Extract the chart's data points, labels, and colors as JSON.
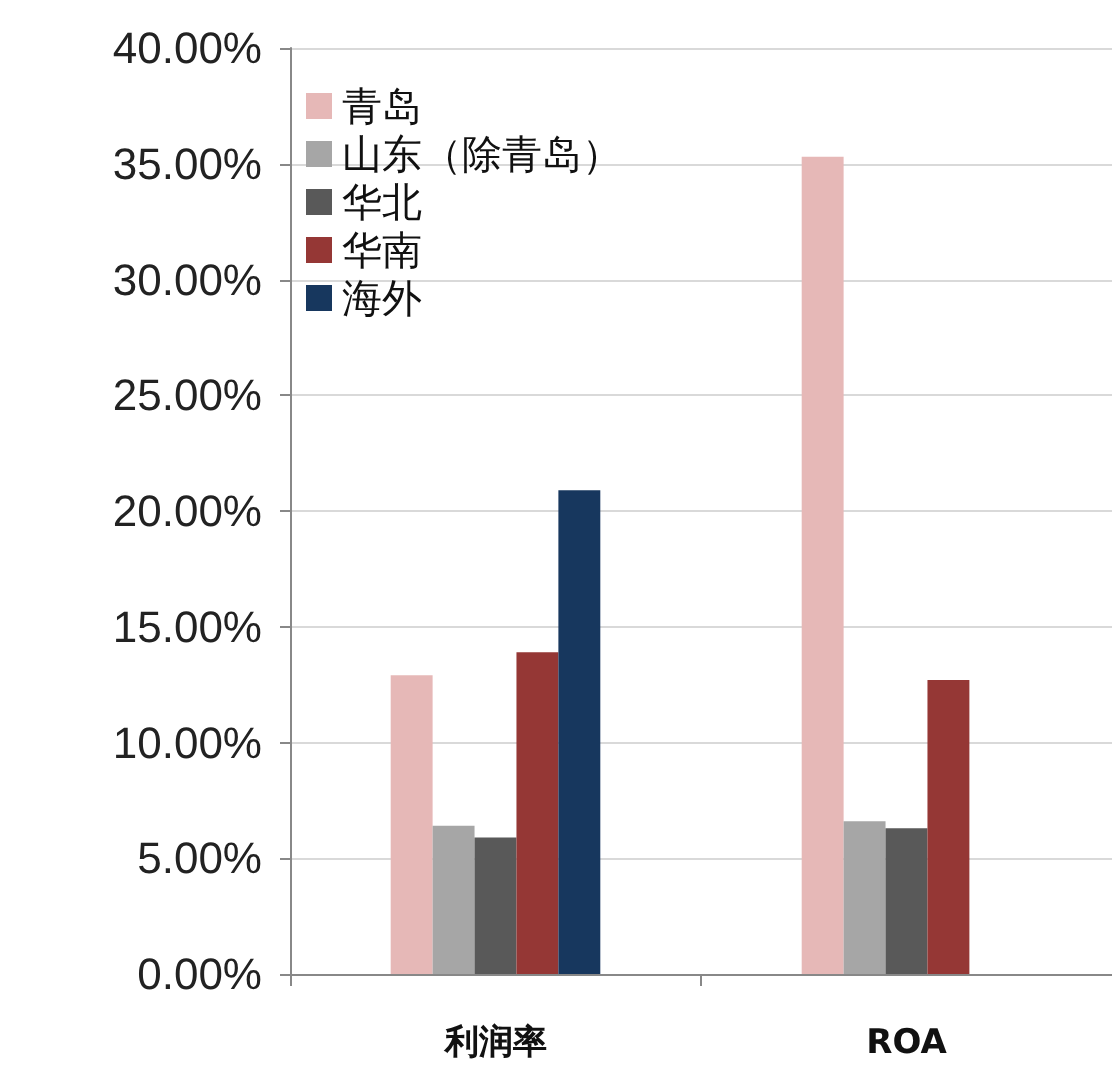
{
  "chart_data": {
    "type": "bar",
    "categories": [
      "利润率",
      "ROA"
    ],
    "series": [
      {
        "name": "青岛",
        "color": "#e6b8b7",
        "values": [
          12.9,
          35.3
        ]
      },
      {
        "name": "山东（除青岛）",
        "color": "#a6a6a6",
        "values": [
          6.4,
          6.6
        ]
      },
      {
        "name": "华北",
        "color": "#595959",
        "values": [
          5.9,
          6.3
        ]
      },
      {
        "name": "华南",
        "color": "#953735",
        "values": [
          13.9,
          12.7
        ]
      },
      {
        "name": "海外",
        "color": "#17375e",
        "values": [
          20.9,
          null
        ]
      }
    ],
    "ylim": [
      0,
      40
    ],
    "yticks": [
      {
        "value": 0,
        "label": "0.00%"
      },
      {
        "value": 5,
        "label": "5.00%"
      },
      {
        "value": 10,
        "label": "10.00%"
      },
      {
        "value": 15,
        "label": "15.00%"
      },
      {
        "value": 20,
        "label": "20.00%"
      },
      {
        "value": 25,
        "label": "25.00%"
      },
      {
        "value": 30,
        "label": "30.00%"
      },
      {
        "value": 35,
        "label": "35.00%"
      },
      {
        "value": 40,
        "label": "40.00%"
      }
    ],
    "grid": "y",
    "legend": "top left"
  }
}
